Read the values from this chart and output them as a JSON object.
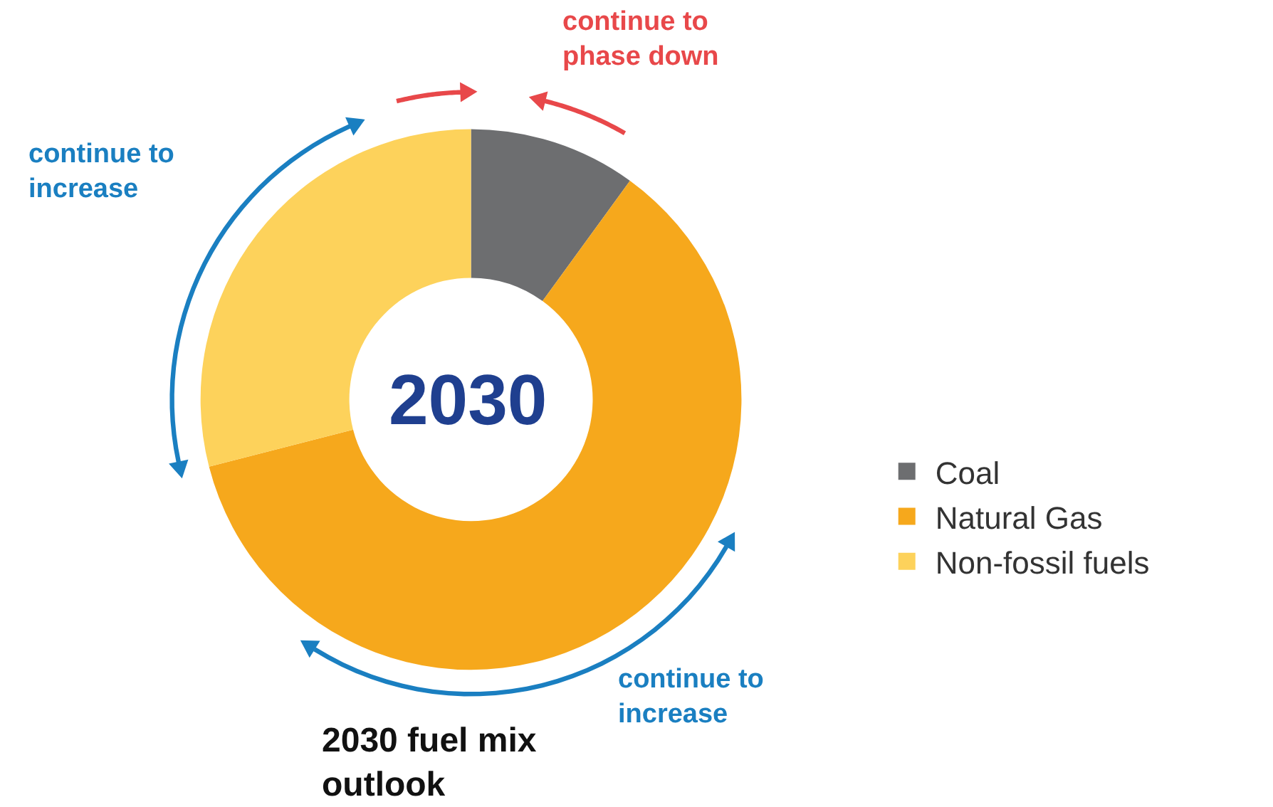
{
  "chart_data": {
    "type": "donut",
    "categories": [
      "Coal",
      "Natural Gas",
      "Non-fossil fuels"
    ],
    "values": [
      10,
      61,
      29
    ],
    "colors": [
      "#6d6e70",
      "#f6a81c",
      "#fdd25b"
    ],
    "legend": "right",
    "annotations": [
      "2030",
      "continue to\nphase down",
      "continue to\nincrease",
      "continue to\nincrease",
      "2030 fuel mix\noutlook"
    ]
  }
}
